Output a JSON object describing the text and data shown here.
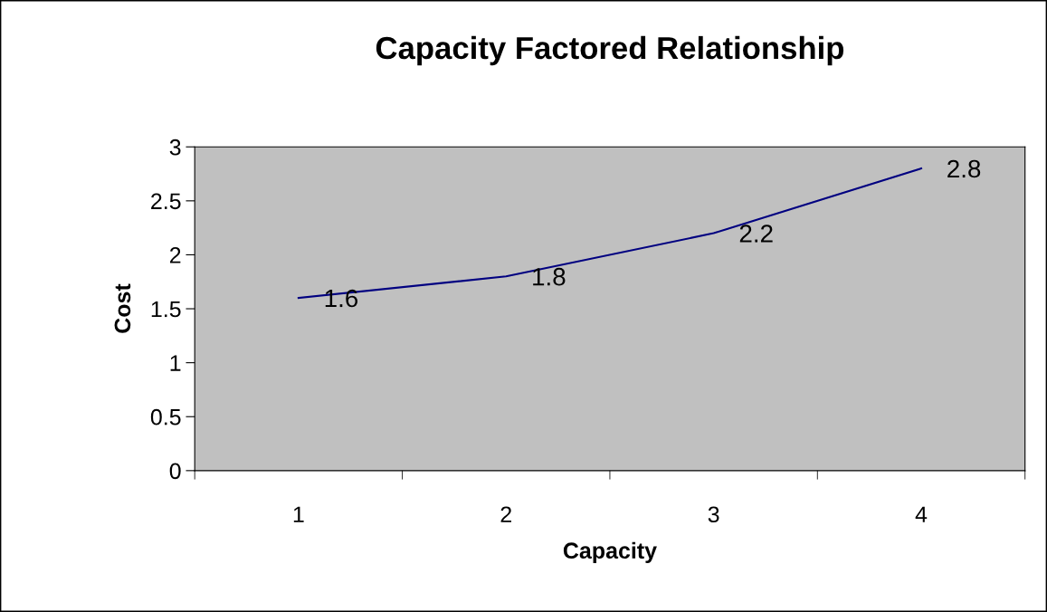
{
  "chart_data": {
    "type": "line",
    "title": "Capacity Factored Relationship",
    "xlabel": "Capacity",
    "ylabel": "Cost",
    "categories": [
      "1",
      "2",
      "3",
      "4"
    ],
    "series": [
      {
        "color": "#000080",
        "values": [
          1.6,
          1.8,
          2.2,
          2.8
        ]
      }
    ],
    "ylim": [
      0,
      3
    ],
    "yticks": [
      0,
      0.5,
      1,
      1.5,
      2,
      2.5,
      3
    ],
    "data_labels": true,
    "grid": false,
    "marker": "none",
    "line_style": "solid"
  }
}
